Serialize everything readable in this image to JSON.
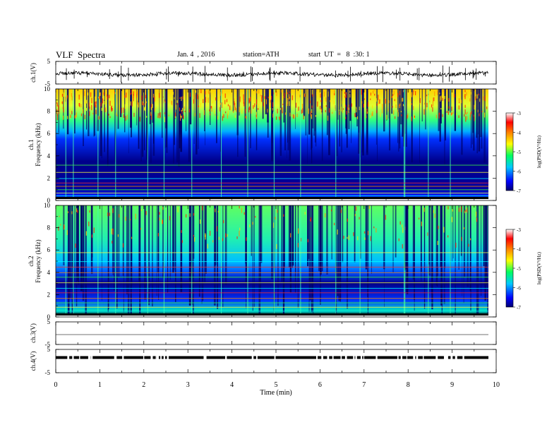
{
  "header": {
    "title": "VLF  Spectra",
    "date": "Jan. 4  , 2016",
    "station": "station=ATH",
    "start": "start  UT  =   8  :30: 1"
  },
  "chart_data": [
    {
      "type": "line",
      "panel": "ch1-waveform",
      "ylabel": "ch.1(V)",
      "yticks": [
        "5",
        "-5"
      ],
      "ylim": [
        -5,
        5
      ],
      "xlim": [
        0,
        10
      ],
      "note_values": "noisy waveform centered near 0 V, extending to ~9.8 min"
    },
    {
      "type": "heatmap",
      "panel": "ch1-spectrogram",
      "ylabel": "ch.1\nFrequency  (kHz)",
      "yticks": [
        "0",
        "2",
        "4",
        "6",
        "8",
        "10"
      ],
      "ylim": [
        0,
        10
      ],
      "xlim": [
        0,
        10
      ],
      "colorbar": {
        "label": "log(PSD(V²/Hz)",
        "ticks": [
          "-3",
          "-4",
          "-5",
          "-6",
          "-7"
        ],
        "range": [
          -7,
          -3
        ]
      }
    },
    {
      "type": "heatmap",
      "panel": "ch2-spectrogram",
      "ylabel": "ch.2\nFrequency  (kHz)",
      "yticks": [
        "0",
        "2",
        "4",
        "6",
        "8",
        "10"
      ],
      "ylim": [
        0,
        10
      ],
      "xlim": [
        0,
        10
      ],
      "colorbar": {
        "label": "log(PSD(V²/Hz)",
        "ticks": [
          "-3",
          "-4",
          "-5",
          "-6",
          "-7"
        ],
        "range": [
          -7,
          -3
        ]
      }
    },
    {
      "type": "line",
      "panel": "ch3-waveform",
      "ylabel": "ch.3(V)",
      "yticks": [
        "5",
        "-5"
      ],
      "ylim": [
        -5,
        5
      ],
      "xlim": [
        0,
        10
      ]
    },
    {
      "type": "line",
      "panel": "ch4-waveform",
      "ylabel": "ch.4(V)",
      "yticks": [
        "5",
        "-5"
      ],
      "ylim": [
        -5,
        5
      ],
      "xlim": [
        0,
        10
      ]
    }
  ],
  "xaxis": {
    "label": "Time  (min)",
    "ticks": [
      "0",
      "1",
      "2",
      "3",
      "4",
      "5",
      "6",
      "7",
      "8",
      "9",
      "10"
    ]
  }
}
